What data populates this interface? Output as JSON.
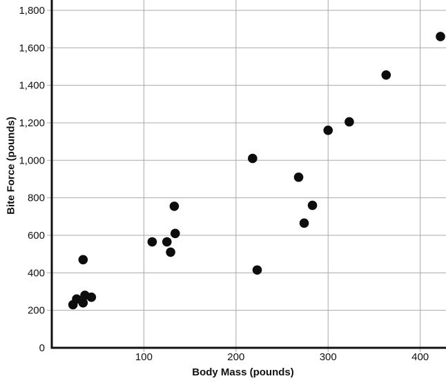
{
  "chart_data": {
    "type": "scatter",
    "title": "",
    "xlabel": "Body Mass (pounds)",
    "ylabel": "Bite Force (pounds)",
    "xlim": [
      0,
      428
    ],
    "ylim": [
      0,
      1855
    ],
    "grid": true,
    "legend": "none",
    "marker": {
      "shape": "circle",
      "color": "#0d0d0d",
      "radius_px": 6.8
    },
    "axis_color": "#111111",
    "gridline_color": "#a8a8a8",
    "x_ticks": [
      {
        "value": 100,
        "label": "100"
      },
      {
        "value": 200,
        "label": "200"
      },
      {
        "value": 300,
        "label": "300"
      },
      {
        "value": 400,
        "label": "400"
      }
    ],
    "y_ticks": [
      {
        "value": 0,
        "label": "0"
      },
      {
        "value": 200,
        "label": "200"
      },
      {
        "value": 400,
        "label": "400"
      },
      {
        "value": 600,
        "label": "600"
      },
      {
        "value": 800,
        "label": "800"
      },
      {
        "value": 1000,
        "label": "1,000"
      },
      {
        "value": 1200,
        "label": "1,200"
      },
      {
        "value": 1400,
        "label": "1,400"
      },
      {
        "value": 1600,
        "label": "1,600"
      },
      {
        "value": 1800,
        "label": "1,800"
      }
    ],
    "points": [
      {
        "x": 23,
        "y": 230
      },
      {
        "x": 27,
        "y": 260
      },
      {
        "x": 34,
        "y": 240
      },
      {
        "x": 36,
        "y": 280
      },
      {
        "x": 43,
        "y": 270
      },
      {
        "x": 34,
        "y": 470
      },
      {
        "x": 109,
        "y": 565
      },
      {
        "x": 125,
        "y": 565
      },
      {
        "x": 129,
        "y": 510
      },
      {
        "x": 134,
        "y": 610
      },
      {
        "x": 133,
        "y": 755
      },
      {
        "x": 218,
        "y": 1010
      },
      {
        "x": 223,
        "y": 415
      },
      {
        "x": 268,
        "y": 910
      },
      {
        "x": 274,
        "y": 665
      },
      {
        "x": 283,
        "y": 760
      },
      {
        "x": 300,
        "y": 1160
      },
      {
        "x": 323,
        "y": 1205
      },
      {
        "x": 363,
        "y": 1455
      },
      {
        "x": 422,
        "y": 1660
      }
    ]
  }
}
